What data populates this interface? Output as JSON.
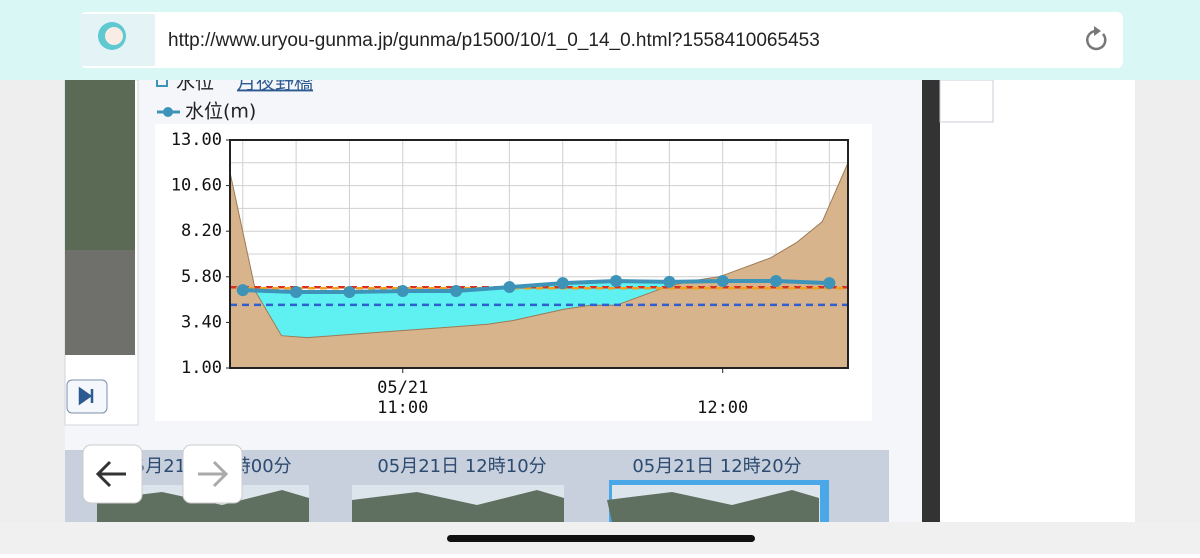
{
  "browser": {
    "url": "http://www.uryou-gunma.jp/gunma/p1500/10/1_0_14_0.html?1558410065453"
  },
  "header": {
    "label": "水位",
    "station": "月夜野橋"
  },
  "chart_data": {
    "type": "line",
    "series": [
      {
        "name": "水位(m)",
        "color": "#3d94b8",
        "values": [
          5.1,
          5.0,
          5.0,
          5.05,
          5.05,
          5.26,
          5.47,
          5.58,
          5.53,
          5.58,
          5.58,
          5.47
        ]
      }
    ],
    "x": [
      630,
      640,
      650,
      660,
      670,
      680,
      690,
      700,
      710,
      720,
      730,
      740
    ],
    "xlim": [
      627.6,
      743.5
    ],
    "xticks": [
      {
        "value": 660,
        "label": "05/21\n11:00"
      },
      {
        "value": 720,
        "label": "12:00"
      }
    ],
    "ylim": [
      1,
      13
    ],
    "yticks": [
      {
        "value": 13,
        "label": "13.00"
      },
      {
        "value": 10.6,
        "label": "10.60"
      },
      {
        "value": 8.2,
        "label": "8.20"
      },
      {
        "value": 5.8,
        "label": "5.80"
      },
      {
        "value": 3.4,
        "label": "3.40"
      },
      {
        "value": 1,
        "label": "1.00"
      }
    ],
    "yminor": [
      2.2,
      4.6,
      7,
      9.4,
      11.8
    ],
    "grid": true,
    "water_fill": "#5ff0f2",
    "bed_profile": {
      "color": "#d8b48c",
      "values": [
        11.3,
        5.0,
        2.7,
        2.6,
        2.7,
        2.8,
        2.9,
        3.0,
        3.1,
        3.2,
        3.3,
        3.5,
        3.8,
        4.1,
        4.3,
        4.3,
        4.8,
        5.3,
        5.6,
        5.8,
        6.3,
        6.8,
        7.6,
        8.7,
        11.8
      ]
    },
    "reference_lines": [
      {
        "value": 5.25,
        "color": "#d9301f"
      },
      {
        "value": 5.2,
        "color": "#f0a020"
      },
      {
        "value": 4.32,
        "color": "#3060d0"
      }
    ]
  },
  "thumbnails": [
    "05月21日 12時00分",
    "05月21日 12時10分",
    "05月21日 12時20分"
  ]
}
